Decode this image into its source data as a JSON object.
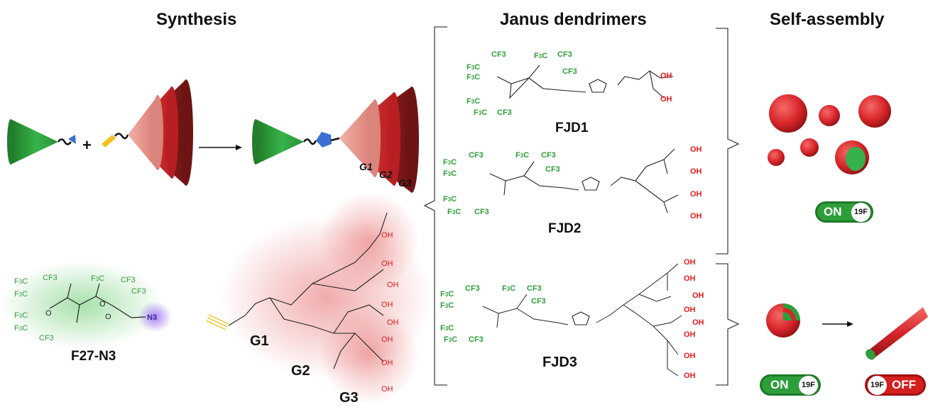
{
  "headers": {
    "synthesis": "Synthesis",
    "janus": "Janus dendrimers",
    "self_assembly": "Self-assembly"
  },
  "generation_labels": [
    "G1",
    "G2",
    "G3"
  ],
  "labels": {
    "precursor": "F27-N3",
    "g1": "G1",
    "g2": "G2",
    "g3": "G3",
    "fjd1": "FJD1",
    "fjd2": "FJD2",
    "fjd3": "FJD3"
  },
  "toggles": {
    "on_1": {
      "state": "ON",
      "nucleus": "19F"
    },
    "on_2": {
      "state": "ON",
      "nucleus": "19F"
    },
    "off": {
      "state": "OFF",
      "nucleus": "19F"
    }
  },
  "groups": {
    "cf3": "CF3",
    "oh": "OH",
    "n3": "N3"
  },
  "colors": {
    "fluoro_green": "#2e9e3a",
    "dendron_red": "#d8262b",
    "hydroxyl_red": "#e21b1b",
    "alkyne_yellow": "#f2c21b",
    "azide_purple": "#8a5cf0",
    "triazole_blue": "#3b6fd1",
    "off_red": "#d41f1f"
  }
}
